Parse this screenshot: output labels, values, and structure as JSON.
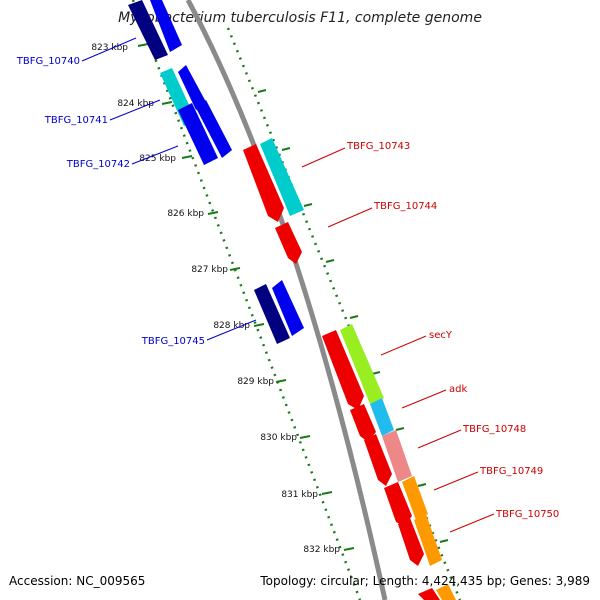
{
  "title": "Mycobacterium tuberculosis F11, complete genome",
  "footer": {
    "accession": "Accession: NC_009565",
    "summary": "Topology: circular; Length: 4,424,435 bp; Genes: 3,989"
  },
  "colors": {
    "backbone": "#8a8a8a",
    "tick": "#1a7a1a",
    "label_left": "#0000cc",
    "label_right": "#cc0000"
  },
  "ticks": [
    "823 kbp",
    "824 kbp",
    "825 kbp",
    "826 kbp",
    "827 kbp",
    "828 kbp",
    "829 kbp",
    "830 kbp",
    "831 kbp",
    "832 kbp"
  ],
  "genes_left": [
    {
      "label": "TBFG_10740",
      "color": "#000080"
    },
    {
      "label": "TBFG_10741",
      "color": "#00cccc"
    },
    {
      "label": "TBFG_10742",
      "color": "#0000ee"
    },
    {
      "label": "TBFG_10745",
      "color": "#000080"
    }
  ],
  "genes_right": [
    {
      "label": "TBFG_10743",
      "color": "#00cccc"
    },
    {
      "label": "TBFG_10744",
      "color": "#ee0000"
    },
    {
      "label": "secY",
      "color": "#99ee22"
    },
    {
      "label": "adk",
      "color": "#22bbee"
    },
    {
      "label": "TBFG_10748",
      "color": "#ee8888"
    },
    {
      "label": "TBFG_10749",
      "color": "#ff9900"
    },
    {
      "label": "TBFG_10750",
      "color": "#ff9900"
    }
  ]
}
